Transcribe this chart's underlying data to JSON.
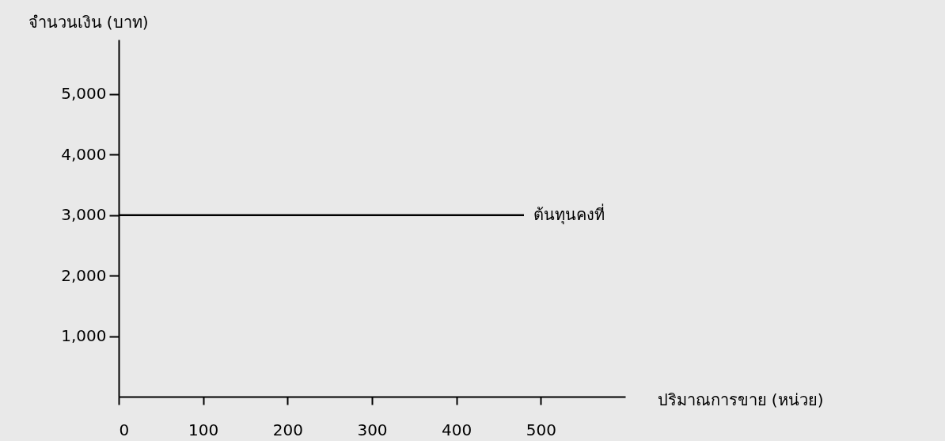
{
  "chart_data": {
    "type": "line",
    "xlabel": "ปริมาณการขาย (หน่วย)",
    "ylabel": "จำนวนเงิน (บาท)",
    "x": [
      0,
      480
    ],
    "series": [
      {
        "name": "ต้นทุนคงที่",
        "color": "#000000",
        "values": [
          3000,
          3000
        ]
      }
    ],
    "xlim": [
      0,
      600
    ],
    "ylim": [
      0,
      5900
    ],
    "xticks": [
      0,
      100,
      200,
      300,
      400,
      500
    ],
    "yticks": [
      {
        "value": 1000,
        "label": "1,000"
      },
      {
        "value": 2000,
        "label": "2,000"
      },
      {
        "value": 3000,
        "label": "3,000"
      },
      {
        "value": 4000,
        "label": "4,000"
      },
      {
        "value": 5000,
        "label": "5,000"
      }
    ],
    "grid": false,
    "legend": false,
    "marker": "none",
    "line_style": "solid"
  }
}
